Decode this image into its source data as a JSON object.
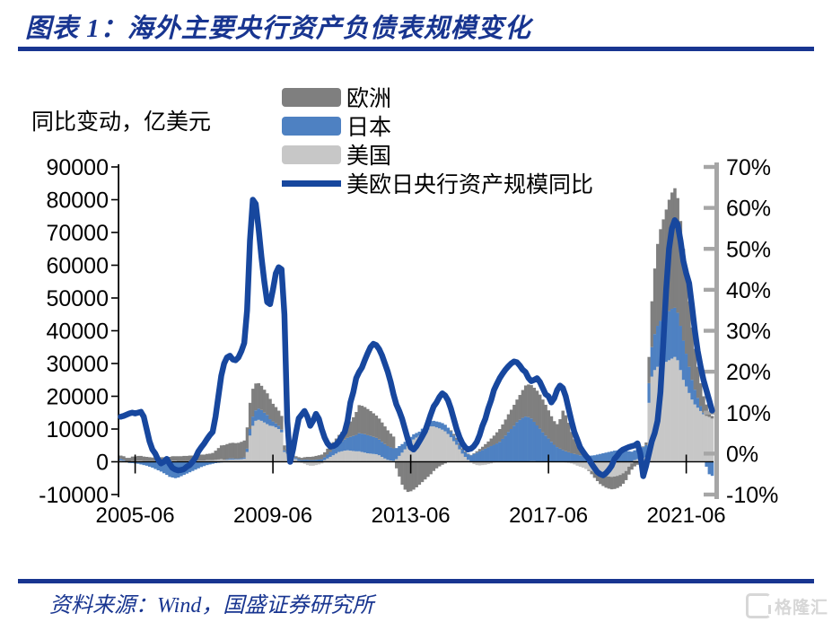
{
  "header": {
    "title": "图表 1：海外主要央行资产负债表规模变化"
  },
  "footer": {
    "source": "资料来源：Wind，国盛证券研究所"
  },
  "watermark": {
    "label": "格隆汇"
  },
  "colors": {
    "navy": "#183590",
    "line": "#17479E",
    "europe": "#7F7F7F",
    "japan": "#4E81C2",
    "us": "#C7C7C7",
    "right_axis": "#A6A6A6",
    "axis_black": "#000000"
  },
  "chart_data": {
    "type": "bar+line",
    "title": "海外主要央行资产负债表规模变化",
    "unit_label": "同比变动，亿美元",
    "start_month": "2005-01",
    "x_tick_labels": [
      "2005-06",
      "2009-06",
      "2013-06",
      "2017-06",
      "2021-06"
    ],
    "x_tick_month_index": [
      5,
      53,
      101,
      149,
      197
    ],
    "left_axis": {
      "min": -10000,
      "max": 90000,
      "ticks": [
        90000,
        80000,
        70000,
        60000,
        50000,
        40000,
        30000,
        20000,
        10000,
        0,
        -10000
      ]
    },
    "right_axis": {
      "min": -10,
      "max": 70,
      "ticks": [
        "70%",
        "60%",
        "50%",
        "40%",
        "30%",
        "20%",
        "10%",
        "0%",
        "-10%"
      ]
    },
    "legend": [
      "欧洲",
      "日本",
      "美国",
      "美欧日央行资产规模同比"
    ],
    "series": [
      {
        "name": "美国",
        "role": "us",
        "type": "bar",
        "unit": "亿美元",
        "values_by_year": [
          [
            400,
            300,
            -200,
            -200,
            300,
            300,
            400,
            400,
            300,
            300,
            300,
            300
          ],
          [
            300,
            300,
            300,
            300,
            300,
            300,
            400,
            400,
            300,
            300,
            300,
            300
          ],
          [
            300,
            300,
            400,
            400,
            400,
            400,
            500,
            500,
            500,
            600,
            700,
            800
          ],
          [
            600,
            600,
            700,
            700,
            700,
            700,
            800,
            900,
            3000,
            8000,
            11000,
            12500
          ],
          [
            12800,
            12500,
            12000,
            11500,
            11000,
            10900,
            10500,
            10000,
            9000,
            3000,
            2500,
            2000
          ],
          [
            1500,
            800,
            300,
            -300,
            -600,
            -1000,
            -1200,
            -1200,
            -1000,
            -800,
            -500,
            500
          ],
          [
            1000,
            1500,
            2000,
            2500,
            3000,
            3200,
            3400,
            3500,
            3400,
            3300,
            3200,
            3200
          ],
          [
            3000,
            2800,
            2600,
            2500,
            2400,
            2300,
            2000,
            1500,
            1000,
            600,
            400,
            300
          ],
          [
            800,
            1800,
            2800,
            3800,
            4800,
            5800,
            6800,
            7400,
            7900,
            8800,
            9300,
            9800
          ],
          [
            10800,
            10800,
            10500,
            10200,
            9800,
            9300,
            8500,
            7500,
            6300,
            5200,
            3800,
            2500
          ],
          [
            1500,
            600,
            -200,
            -700,
            -1000,
            -1100,
            -1000,
            -900,
            -700,
            -500,
            -200,
            0
          ],
          [
            100,
            0,
            0,
            100,
            0,
            0,
            100,
            0,
            0,
            100,
            100,
            200
          ],
          [
            200,
            100,
            100,
            0,
            0,
            100,
            100,
            0,
            0,
            -100,
            -100,
            -200
          ],
          [
            -300,
            -500,
            -800,
            -1200,
            -1500,
            -1800,
            -2200,
            -2500,
            -2800,
            -3200,
            -3600,
            -4000
          ],
          [
            -4200,
            -4400,
            -4500,
            -4600,
            -4500,
            -4300,
            -4000,
            -3500,
            -2800,
            -1500,
            -500,
            500
          ],
          [
            800,
            1000,
            1200,
            1500,
            18000,
            26000,
            28000,
            29000,
            29500,
            30000,
            30500,
            31000
          ],
          [
            31500,
            32000,
            31000,
            28000,
            25000,
            23000,
            21000,
            19000,
            17500,
            16500,
            15500,
            14500
          ],
          [
            14000,
            13700,
            13200
          ]
        ]
      },
      {
        "name": "日本",
        "role": "japan",
        "type": "bar",
        "unit": "亿美元",
        "values_by_year": [
          [
            500,
            300,
            0,
            -200,
            -400,
            -500,
            -600,
            -800,
            -1000,
            -1200,
            -1500,
            -1800
          ],
          [
            -2200,
            -2600,
            -3000,
            -3500,
            -4000,
            -4600,
            -4800,
            -5000,
            -4800,
            -4400,
            -4000,
            -3600
          ],
          [
            -3200,
            -2800,
            -2400,
            -2000,
            -1600,
            -1300,
            -1000,
            -800,
            -600,
            -400,
            -300,
            -200
          ],
          [
            0,
            200,
            300,
            300,
            200,
            200,
            300,
            400,
            1000,
            2000,
            2800,
            3200
          ],
          [
            3400,
            3300,
            3000,
            2800,
            2000,
            1400,
            1200,
            1000,
            800,
            500,
            400,
            300
          ],
          [
            400,
            400,
            500,
            500,
            600,
            600,
            500,
            500,
            600,
            700,
            800,
            900
          ],
          [
            1200,
            1500,
            1800,
            2200,
            2600,
            3000,
            3400,
            3800,
            4200,
            4600,
            5000,
            5500
          ],
          [
            5600,
            5600,
            5500,
            5400,
            5200,
            5000,
            4800,
            4600,
            4400,
            4200,
            4000,
            3800
          ],
          [
            3400,
            3000,
            2600,
            2300,
            2000,
            1800,
            1600,
            1400,
            1300,
            1300,
            1400,
            1500
          ],
          [
            1600,
            1700,
            1800,
            1900,
            2000,
            2000,
            1900,
            1800,
            1700,
            1500,
            1300,
            1200
          ],
          [
            1400,
            1700,
            2000,
            2400,
            2800,
            3200,
            3600,
            4000,
            4400,
            4800,
            5200,
            5600
          ],
          [
            6000,
            7000,
            8000,
            9000,
            10000,
            11000,
            12000,
            12800,
            13400,
            13700,
            13500,
            13000
          ],
          [
            12000,
            11000,
            10000,
            9000,
            8000,
            7000,
            6000,
            5200,
            4500,
            4000,
            3600,
            3200
          ],
          [
            2900,
            2600,
            2400,
            2200,
            2000,
            1900,
            1800,
            1800,
            1900,
            2000,
            2200,
            2400
          ],
          [
            2600,
            2800,
            3000,
            3200,
            3400,
            3500,
            3500,
            3400,
            3300,
            3200,
            3100,
            3000
          ],
          [
            3000,
            3100,
            3300,
            3600,
            6000,
            9000,
            11000,
            12500,
            13500,
            14000,
            14500,
            15000
          ],
          [
            15200,
            15000,
            14500,
            13500,
            12000,
            10000,
            8000,
            6000,
            4500,
            3000,
            1500,
            500
          ],
          [
            -1500,
            -3800,
            -4300
          ]
        ]
      },
      {
        "name": "欧洲",
        "role": "europe",
        "type": "bar",
        "unit": "亿美元",
        "values_by_year": [
          [
            1000,
            1100,
            1200,
            1200,
            1300,
            1300,
            1400,
            1400,
            1300,
            1200,
            1100,
            1000
          ],
          [
            1000,
            1000,
            1100,
            1100,
            1200,
            1200,
            1300,
            1300,
            1400,
            1400,
            1500,
            1500
          ],
          [
            1600,
            1600,
            1700,
            1700,
            1800,
            1800,
            1900,
            2000,
            2200,
            2800,
            3500,
            4200
          ],
          [
            4500,
            4600,
            4700,
            4800,
            4800,
            4900,
            5000,
            5200,
            6500,
            8000,
            8500,
            8200
          ],
          [
            7800,
            7400,
            7000,
            6600,
            6200,
            5400,
            5000,
            4600,
            4200,
            1500,
            1000,
            800
          ],
          [
            600,
            500,
            600,
            700,
            800,
            900,
            1000,
            1100,
            1200,
            1300,
            1400,
            1500
          ],
          [
            1800,
            2000,
            2200,
            2400,
            2600,
            2900,
            3300,
            3900,
            4700,
            5700,
            7000,
            8600
          ],
          [
            8500,
            8300,
            8000,
            7600,
            7200,
            6800,
            6400,
            5900,
            5400,
            4800,
            4200,
            3600
          ],
          [
            -2000,
            -4500,
            -7000,
            -8500,
            -9200,
            -9000,
            -8500,
            -7800,
            -7000,
            -6200,
            -5400,
            -4600
          ],
          [
            -3800,
            -2800,
            -2000,
            -1400,
            -900,
            -500,
            0,
            300,
            500,
            600,
            500,
            400
          ],
          [
            300,
            200,
            100,
            200,
            400,
            700,
            1000,
            1400,
            1800,
            2300,
            2800,
            3400
          ],
          [
            3900,
            4400,
            4900,
            5400,
            5900,
            6400,
            6900,
            7600,
            8500,
            9500,
            10000,
            10200
          ],
          [
            10400,
            10600,
            10400,
            10000,
            9400,
            8600,
            7800,
            7200,
            7000,
            9000,
            12000,
            11000
          ],
          [
            9000,
            6500,
            4500,
            3000,
            2000,
            1200,
            500,
            -300,
            -1000,
            -1700,
            -2300,
            -2800
          ],
          [
            -3200,
            -3500,
            -3700,
            -3800,
            -3800,
            -3700,
            -3500,
            -3200,
            -2800,
            -2400,
            -1900,
            -1400
          ],
          [
            -900,
            -400,
            200,
            800,
            8000,
            14000,
            20000,
            25000,
            28000,
            30000,
            32000,
            34000
          ],
          [
            35500,
            36500,
            35000,
            32000,
            28000,
            24000,
            20000,
            16000,
            12500,
            9500,
            7000,
            5000
          ],
          [
            3500,
            1500,
            800
          ]
        ]
      },
      {
        "name": "美欧日央行资产规模同比",
        "role": "line",
        "type": "line",
        "unit": "%",
        "values_by_year": [
          [
            9,
            9.2,
            9.5,
            9.8,
            10,
            9.8,
            10,
            10.2,
            9,
            6,
            3,
            1
          ],
          [
            0,
            -1.5,
            -2.4,
            -2,
            -1.3,
            -2.5,
            -3.5,
            -3.9,
            -4.1,
            -4,
            -3.8,
            -3.2
          ],
          [
            -2.8,
            -2,
            -1,
            0.5,
            1.5,
            2.4,
            3.5,
            4.5,
            5.3,
            9,
            14,
            19
          ],
          [
            22,
            23.5,
            23.9,
            23,
            22.8,
            23.5,
            25,
            27,
            35,
            52,
            62,
            61
          ],
          [
            55,
            48,
            42,
            37,
            36.5,
            40,
            44,
            45.5,
            45,
            34,
            8,
            -2
          ],
          [
            1,
            5,
            8.6,
            9.5,
            10.4,
            9,
            6.8,
            8,
            9.7,
            8.5,
            6,
            3.9
          ],
          [
            2.5,
            1.7,
            1.8,
            2.2,
            3,
            4.2,
            5.3,
            8,
            12.5,
            15,
            18.4,
            19.9
          ],
          [
            21,
            22.8,
            24.5,
            26,
            26.8,
            26.5,
            25.5,
            24,
            22,
            20,
            17.5,
            14.5
          ],
          [
            12,
            10.4,
            8.5,
            6,
            3.5,
            1.5,
            1,
            1.8,
            3,
            4.2,
            5.5,
            7.5
          ],
          [
            9.6,
            11.5,
            12.5,
            13.8,
            14.7,
            14.2,
            13,
            11,
            8.5,
            6,
            4,
            2.5
          ],
          [
            1.5,
            1,
            1.2,
            1.8,
            2.8,
            4.5,
            6.8,
            8.5,
            11,
            13,
            15.5,
            17
          ],
          [
            18.4,
            19.5,
            20.5,
            21.3,
            22,
            22.5,
            22.3,
            21.5,
            20.5,
            19.9,
            18.5,
            17.7
          ],
          [
            18,
            18.4,
            17.5,
            16,
            14.5,
            14,
            12.5,
            13.5,
            15.5,
            16.6,
            16,
            14
          ],
          [
            11,
            8,
            5.3,
            3.5,
            1.6,
            0.5,
            -0.5,
            -1.3,
            -2.5,
            -3.5,
            -4.5,
            -5
          ],
          [
            -5.3,
            -4.8,
            -4,
            -3,
            -1.3,
            -0.5,
            0.5,
            1,
            1.3,
            1.6,
            1.8,
            2
          ],
          [
            2.5,
            0,
            -5.5,
            -3,
            0,
            3,
            5,
            8,
            15,
            27,
            40,
            50
          ],
          [
            55,
            57,
            56,
            52,
            47,
            44,
            41.6,
            36,
            30,
            25,
            21.3,
            18
          ],
          [
            15.5,
            13,
            10.5
          ]
        ]
      }
    ]
  }
}
